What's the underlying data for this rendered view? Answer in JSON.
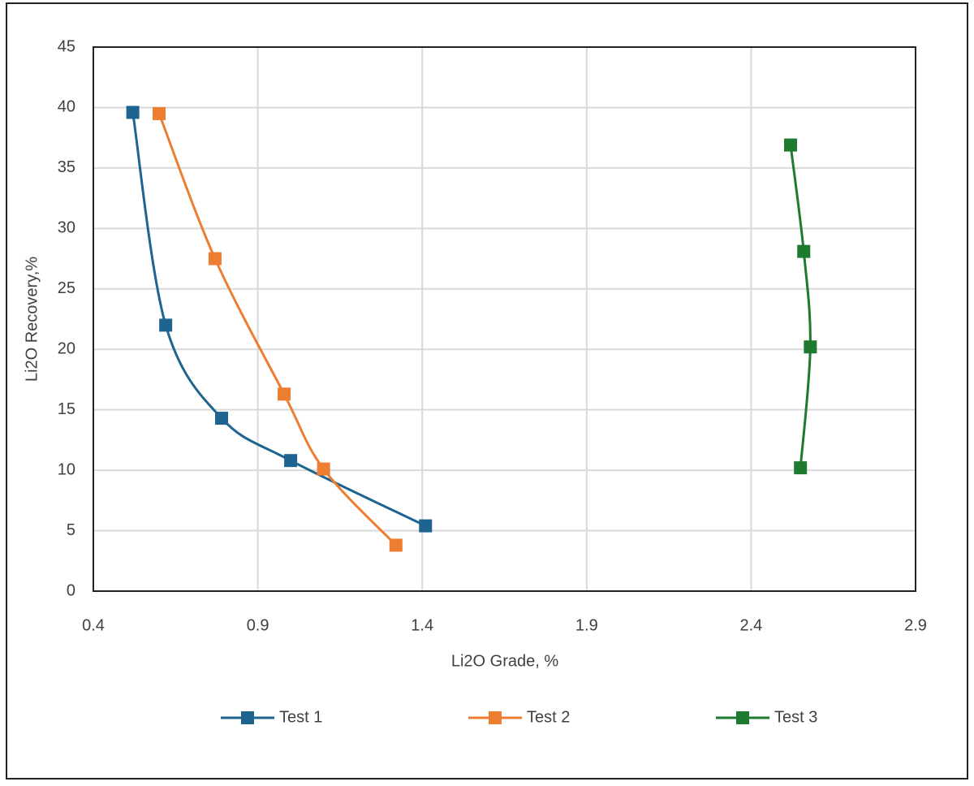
{
  "chart_data": {
    "type": "scatter-line",
    "x_label": "Li2O Grade, %",
    "y_label": "Li2O Recovery,%",
    "xlim": [
      0.4,
      2.9
    ],
    "xticks": [
      0.4,
      0.9,
      1.4,
      1.9,
      2.4,
      2.9
    ],
    "ylim": [
      0,
      45
    ],
    "yticks": [
      0,
      5,
      10,
      15,
      20,
      25,
      30,
      35,
      40,
      45
    ],
    "grid": true,
    "smooth": true,
    "legend": "bottom",
    "series": [
      {
        "name": "Test 1",
        "color": "#1f6391",
        "x": [
          0.52,
          0.62,
          0.79,
          1.0,
          1.41
        ],
        "y": [
          39.6,
          22,
          14.3,
          10.8,
          5.4
        ]
      },
      {
        "name": "Test 2",
        "color": "#ed7d31",
        "x": [
          0.6,
          0.77,
          0.98,
          1.1,
          1.32
        ],
        "y": [
          39.5,
          27.5,
          16.3,
          10.1,
          3.8
        ]
      },
      {
        "name": "Test 3",
        "color": "#1e7a2e",
        "x": [
          2.52,
          2.56,
          2.58,
          2.55
        ],
        "y": [
          36.9,
          28.1,
          20.2,
          10.2
        ]
      }
    ]
  }
}
